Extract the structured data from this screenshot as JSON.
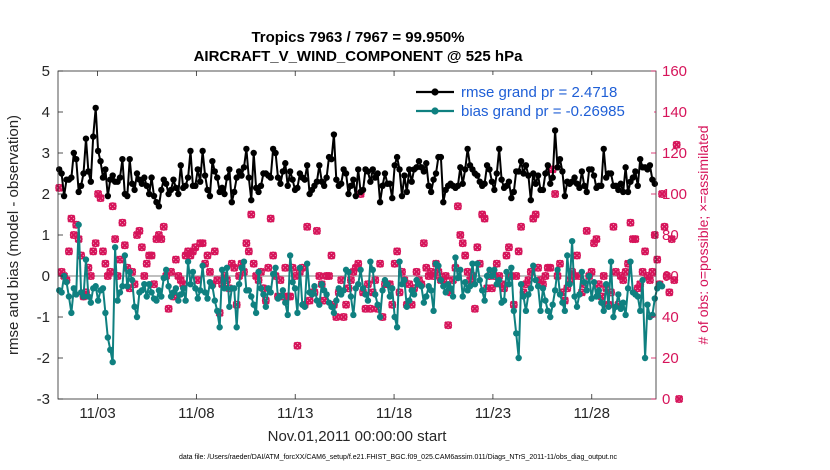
{
  "chart_data": {
    "type": "line",
    "title": "Tropics 7963 / 7967 = 99.950%",
    "subtitle": "AIRCRAFT_V_WIND_COMPONENT @ 525 hPa",
    "xlabel": "Nov.01,2011 00:00:00 start",
    "ylabel": "rmse and bias (model - observation)",
    "y2label": "# of obs: o=possible; ×=assimilated",
    "footnote": "data file: /Users/raeder/DAI/ATM_forcXX/CAM6_setup/f.e21.FHIST_BGC.f09_025.CAM6assim.011/Diags_NTrS_2011-11/obs_diag_output.nc",
    "xlim": [
      1,
      31.25
    ],
    "ylim": [
      -3,
      5
    ],
    "y2lim": [
      0,
      160
    ],
    "x_ticks": [
      3,
      8,
      13,
      18,
      23,
      28
    ],
    "x_tick_labels": [
      "11/03",
      "11/08",
      "11/13",
      "11/18",
      "11/23",
      "11/28"
    ],
    "y_ticks": [
      -3,
      -2,
      -1,
      0,
      1,
      2,
      3,
      4,
      5
    ],
    "y_tick_labels": [
      "-3",
      "-2",
      "-1",
      "0",
      "1",
      "2",
      "3",
      "4",
      "5"
    ],
    "y2_ticks": [
      0,
      20,
      40,
      60,
      80,
      100,
      120,
      140,
      160
    ],
    "y2_tick_labels": [
      "0",
      "20",
      "40",
      "60",
      "80",
      "100",
      "120",
      "140",
      "160"
    ],
    "legend_position": "top-right",
    "colors": {
      "rmse": "#000000",
      "bias": "#0f8080",
      "obs": "#d6145a",
      "zero": "#bfbfbf"
    },
    "series": [
      {
        "name": "rmse",
        "legend": "rmse grand pr = 2.4718",
        "values": [
          2.6,
          2.5,
          1.95,
          2.35,
          2.35,
          2.4,
          3.0,
          2.85,
          2.05,
          2.2,
          2.5,
          3.35,
          2.55,
          2.3,
          3.4,
          4.1,
          3.05,
          2.8,
          2.4,
          2.6,
          1.95,
          2.35,
          2.45,
          2.3,
          2.3,
          2.4,
          2.85,
          2.0,
          1.95,
          2.85,
          2.25,
          2.1,
          2.5,
          2.35,
          2.25,
          2.4,
          2.2,
          2.0,
          2.4,
          1.95,
          1.8,
          1.7,
          2.1,
          2.35,
          2.25,
          2.0,
          2.1,
          2.35,
          2.15,
          2.0,
          2.7,
          2.15,
          2.2,
          2.4,
          3.05,
          2.2,
          2.2,
          2.6,
          2.3,
          3.05,
          2.45,
          2.1,
          1.95,
          2.8,
          2.55,
          2.4,
          2.05,
          2.15,
          2.0,
          2.4,
          2.6,
          1.8,
          2.05,
          2.4,
          2.55,
          2.45,
          2.65,
          3.1,
          2.4,
          1.85,
          3.0,
          2.15,
          2.05,
          2.2,
          2.5,
          2.5,
          2.45,
          2.4,
          3.1,
          3.0,
          2.4,
          2.25,
          2.55,
          2.75,
          2.2,
          2.55,
          2.35,
          2.1,
          2.15,
          2.5,
          2.4,
          2.35,
          2.7,
          2.0,
          2.1,
          2.2,
          2.3,
          2.7,
          2.3,
          2.2,
          2.4,
          2.9,
          2.85,
          3.45,
          2.35,
          2.2,
          2.25,
          2.6,
          2.5,
          2.0,
          2.2,
          2.35,
          1.95,
          2.6,
          2.05,
          2.1,
          2.6,
          2.55,
          2.3,
          2.6,
          2.4,
          2.5,
          1.8,
          2.2,
          2.5,
          2.25,
          2.25,
          1.9,
          2.7,
          2.9,
          2.6,
          1.95,
          2.45,
          2.05,
          2.6,
          2.3,
          2.6,
          2.65,
          2.8,
          2.65,
          2.55,
          2.75,
          2.2,
          2.05,
          2.35,
          2.5,
          2.9,
          2.9,
          1.8,
          2.1,
          2.2,
          2.25,
          2.2,
          2.15,
          2.2,
          2.65,
          2.25,
          2.6,
          3.1,
          2.7,
          2.6,
          2.5,
          2.45,
          2.3,
          2.2,
          2.25,
          2.7,
          2.6,
          2.3,
          2.1,
          2.5,
          3.1,
          2.35,
          2.15,
          2.2,
          2.3,
          1.9,
          2.05,
          2.55,
          2.55,
          2.8,
          2.5,
          2.7,
          2.45,
          1.85,
          2.5,
          2.25,
          2.45,
          2.1,
          2.1,
          2.5,
          2.7,
          2.25,
          2.4,
          3.55,
          2.65,
          2.85,
          2.55,
          1.95,
          2.3,
          2.25,
          2.3,
          2.4,
          2.25,
          2.15,
          2.55,
          2.2,
          2.05,
          2.6,
          2.6,
          2.45,
          2.15,
          2.2,
          2.2,
          3.1,
          2.4,
          2.5,
          2.5,
          2.2,
          2.2,
          2.1,
          2.25,
          2.05,
          2.65,
          2.05,
          2.3,
          2.4,
          2.55,
          2.2,
          2.85,
          2.65,
          2.65,
          2.6,
          2.7,
          2.35,
          2.25
        ]
      },
      {
        "name": "bias",
        "legend": "bias grand pr = -0.26985",
        "values": [
          -0.35,
          -0.4,
          0.0,
          -0.15,
          -0.5,
          -0.9,
          -0.3,
          -0.45,
          1.25,
          -0.4,
          -0.5,
          0.4,
          -0.5,
          -0.65,
          -0.3,
          -0.25,
          -0.6,
          -0.35,
          -0.3,
          -0.9,
          -1.5,
          -1.8,
          -2.1,
          0.7,
          -0.6,
          -0.4,
          -0.25,
          0.5,
          -0.25,
          0.1,
          -0.1,
          -0.75,
          -1.0,
          -0.4,
          -0.35,
          -0.2,
          -0.5,
          -0.2,
          -0.4,
          -0.55,
          -0.6,
          -0.35,
          -0.5,
          -0.05,
          0.15,
          -0.25,
          -0.5,
          -0.4,
          -0.3,
          -0.6,
          -0.45,
          -0.3,
          -0.6,
          0.35,
          -0.2,
          0.1,
          -0.3,
          -0.55,
          -0.35,
          0.25,
          -0.4,
          -0.55,
          -0.15,
          -0.25,
          -0.6,
          -0.85,
          -1.25,
          0.15,
          -0.3,
          0.2,
          -0.75,
          -0.3,
          -0.3,
          -1.25,
          -0.2,
          0.2,
          0.35,
          -0.35,
          -0.35,
          -0.5,
          -0.7,
          -0.9,
          0.1,
          -0.3,
          -0.45,
          -0.75,
          -0.3,
          -0.4,
          0.05,
          0.2,
          -0.55,
          -0.5,
          -0.35,
          -0.65,
          -0.95,
          0.5,
          -0.15,
          -0.3,
          -0.9,
          0.2,
          -0.7,
          -0.75,
          0.3,
          -0.4,
          -0.45,
          -0.25,
          -0.6,
          -0.7,
          -0.2,
          -0.35,
          -0.45,
          -0.65,
          -0.75,
          -0.9,
          -0.6,
          -0.3,
          -0.45,
          -0.35,
          0.15,
          0.1,
          -0.5,
          -0.95,
          -0.3,
          -0.2,
          0.15,
          -0.3,
          -0.45,
          -0.6,
          0.35,
          0.15,
          -0.45,
          -0.7,
          -1.0,
          -0.35,
          -0.1,
          -0.2,
          -0.5,
          -0.3,
          -1.0,
          -1.25,
          0.35,
          -0.2,
          -0.1,
          -0.75,
          -0.6,
          -0.35,
          -0.45,
          -0.1,
          -0.2,
          -0.25,
          -0.65,
          -0.5,
          -0.25,
          -0.35,
          -0.85,
          0.3,
          0.25,
          -0.1,
          -0.25,
          -0.4,
          -0.2,
          -0.3,
          -0.5,
          0.45,
          -0.05,
          0.15,
          -0.5,
          -0.15,
          -0.35,
          -0.25,
          0.3,
          -0.2,
          0.3,
          -0.1,
          -0.35,
          -0.6,
          0.0,
          0.15,
          0.0,
          0.15,
          -0.2,
          -0.1,
          -0.65,
          -0.6,
          0.1,
          -0.2,
          0.2,
          -0.85,
          -1.4,
          -2.0,
          -0.2,
          -0.5,
          -0.85,
          -0.45,
          -0.3,
          0.25,
          -0.1,
          -0.25,
          -0.85,
          -0.3,
          -0.6,
          -0.85,
          -1.0,
          -0.7,
          -0.35,
          0.15,
          -0.45,
          -0.65,
          -0.85,
          0.5,
          -0.2,
          0.85,
          -0.5,
          -0.75,
          -0.45,
          0.1,
          -0.15,
          -0.35,
          0.0,
          -0.55,
          -0.15,
          -0.5,
          -0.35,
          -0.65,
          -0.85,
          -0.2,
          -0.75,
          0.35,
          -1.0,
          -0.75,
          -0.45,
          -0.8,
          -0.65,
          -0.95,
          -0.3,
          0.35,
          -0.4,
          -0.45,
          -0.5,
          -0.85,
          -0.1,
          -2.0,
          -0.7,
          -1.0,
          -0.95,
          -0.55,
          -0.3,
          -0.2,
          -0.25
        ]
      }
    ],
    "obs": {
      "name": "# of obs",
      "possible": [
        103,
        62,
        60,
        58,
        72,
        88,
        80,
        85,
        78,
        70,
        50,
        52,
        64,
        60,
        72,
        76,
        100,
        98,
        72,
        66,
        60,
        62,
        94,
        78,
        60,
        68,
        86,
        75,
        64,
        54,
        62,
        56,
        80,
        82,
        74,
        60,
        66,
        70,
        70,
        56,
        78,
        80,
        78,
        84,
        60,
        44,
        62,
        50,
        68,
        60,
        58,
        56,
        70,
        72,
        70,
        72,
        74,
        58,
        76,
        76,
        66,
        70,
        62,
        56,
        72,
        58,
        42,
        56,
        60,
        58,
        54,
        66,
        64,
        46,
        60,
        66,
        62,
        76,
        72,
        90,
        66,
        60,
        58,
        62,
        54,
        48,
        64,
        88,
        70,
        60,
        50,
        58,
        50,
        64,
        50,
        50,
        64,
        60,
        26,
        62,
        64,
        46,
        84,
        48,
        52,
        52,
        82,
        60,
        56,
        48,
        60,
        60,
        70,
        46,
        40,
        52,
        58,
        40,
        46,
        54,
        58,
        62,
        64,
        66,
        100,
        52,
        44,
        56,
        44,
        52,
        58,
        44,
        66,
        40,
        56,
        56,
        56,
        46,
        66,
        72,
        52,
        62,
        58,
        46,
        56,
        46,
        54,
        62,
        58,
        56,
        76,
        64,
        60,
        62,
        60,
        66,
        62,
        58,
        58,
        60,
        36,
        52,
        58,
        64,
        94,
        80,
        76,
        70,
        62,
        58,
        60,
        44,
        74,
        66,
        90,
        88,
        54,
        60,
        54,
        60,
        66,
        60,
        56,
        54,
        70,
        74,
        60,
        46,
        60,
        72,
        84,
        52,
        56,
        58,
        62,
        88,
        90,
        64,
        58,
        56,
        60,
        64,
        64,
        112,
        100,
        60,
        66,
        52,
        48,
        54,
        58,
        62,
        60,
        70,
        60,
        52,
        56,
        82,
        60,
        62,
        76,
        78,
        56,
        50,
        60,
        54,
        46,
        52,
        84,
        62,
        46,
        60,
        58,
        62,
        66,
        86,
        78,
        78,
        54,
        56,
        62,
        72,
        60,
        58,
        62,
        80,
        68,
        56,
        100,
        84,
        60,
        52,
        78,
        58,
        124,
        0
      ],
      "assimilated": [
        103,
        62,
        60,
        58,
        72,
        88,
        80,
        85,
        78,
        70,
        50,
        52,
        64,
        60,
        72,
        76,
        100,
        98,
        72,
        66,
        60,
        62,
        94,
        78,
        60,
        68,
        86,
        75,
        64,
        54,
        62,
        56,
        80,
        82,
        74,
        60,
        66,
        70,
        70,
        56,
        78,
        80,
        78,
        84,
        60,
        44,
        62,
        50,
        68,
        60,
        58,
        56,
        70,
        72,
        70,
        72,
        74,
        58,
        76,
        76,
        66,
        70,
        62,
        56,
        72,
        58,
        42,
        56,
        60,
        58,
        54,
        66,
        64,
        46,
        60,
        66,
        62,
        76,
        72,
        90,
        66,
        60,
        58,
        62,
        54,
        48,
        64,
        88,
        70,
        60,
        50,
        58,
        50,
        64,
        50,
        50,
        64,
        60,
        26,
        62,
        64,
        46,
        84,
        48,
        52,
        52,
        82,
        60,
        56,
        48,
        60,
        60,
        70,
        46,
        40,
        52,
        58,
        40,
        46,
        54,
        58,
        62,
        64,
        66,
        100,
        52,
        44,
        56,
        44,
        52,
        58,
        44,
        66,
        40,
        56,
        56,
        56,
        46,
        66,
        72,
        52,
        62,
        58,
        46,
        56,
        46,
        54,
        62,
        58,
        56,
        76,
        64,
        60,
        62,
        60,
        66,
        62,
        58,
        58,
        60,
        36,
        52,
        58,
        64,
        94,
        80,
        76,
        70,
        62,
        58,
        60,
        44,
        74,
        66,
        90,
        88,
        54,
        60,
        54,
        60,
        66,
        60,
        56,
        54,
        70,
        74,
        60,
        46,
        60,
        72,
        84,
        52,
        56,
        58,
        62,
        88,
        90,
        64,
        58,
        56,
        60,
        64,
        64,
        112,
        100,
        60,
        66,
        52,
        48,
        54,
        58,
        62,
        60,
        70,
        60,
        52,
        56,
        82,
        60,
        62,
        76,
        78,
        56,
        50,
        60,
        54,
        46,
        52,
        84,
        62,
        46,
        60,
        58,
        62,
        66,
        86,
        78,
        78,
        54,
        56,
        62,
        72,
        60,
        58,
        62,
        80,
        68,
        56,
        100,
        84,
        60,
        52,
        78,
        58,
        124,
        0
      ]
    }
  }
}
